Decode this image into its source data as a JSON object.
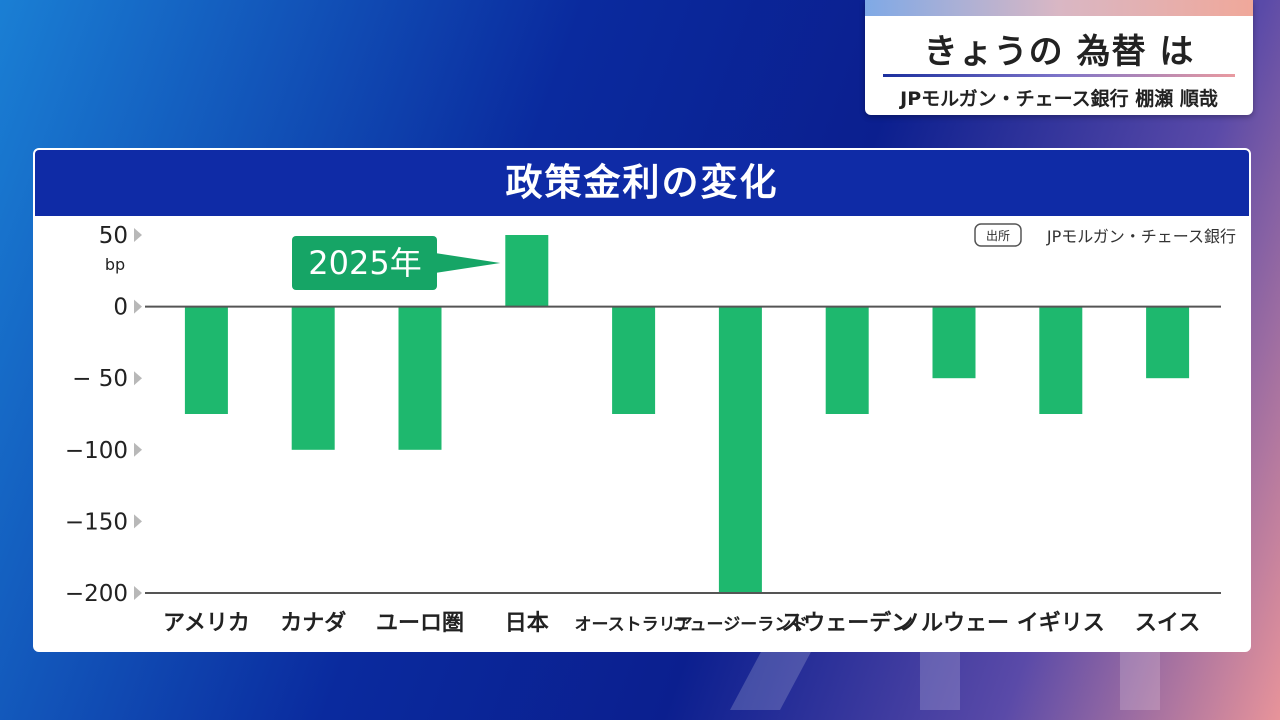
{
  "corner": {
    "title": "きょうの 為替 は",
    "subtitle": "JPモルガン・チェース銀行 棚瀬 順哉"
  },
  "colors": {
    "bar": "#1eb86e",
    "header": "#0f2ba6",
    "annotation": "#16a566"
  },
  "chart_data": {
    "type": "bar",
    "title": "政策金利の変化",
    "unit": "bp",
    "source_tag": "出所",
    "source": "JPモルガン・チェース銀行",
    "annotation": {
      "text": "2025年",
      "points_to": "日本"
    },
    "categories": [
      "アメリカ",
      "カナダ",
      "ユーロ圏",
      "日本",
      "オーストラリア",
      "ニュージーランド",
      "スウェーデン",
      "ノルウェー",
      "イギリス",
      "スイス"
    ],
    "values": [
      -75,
      -100,
      -100,
      50,
      -75,
      -200,
      -75,
      -50,
      -75,
      -50
    ],
    "ylim": [
      -200,
      50
    ],
    "yticks": [
      50,
      0,
      -50,
      -100,
      -150,
      -200
    ],
    "ytick_labels": [
      "50",
      "0",
      "− 50",
      "−100",
      "−150",
      "−200"
    ],
    "grid": false,
    "legend": "none"
  }
}
